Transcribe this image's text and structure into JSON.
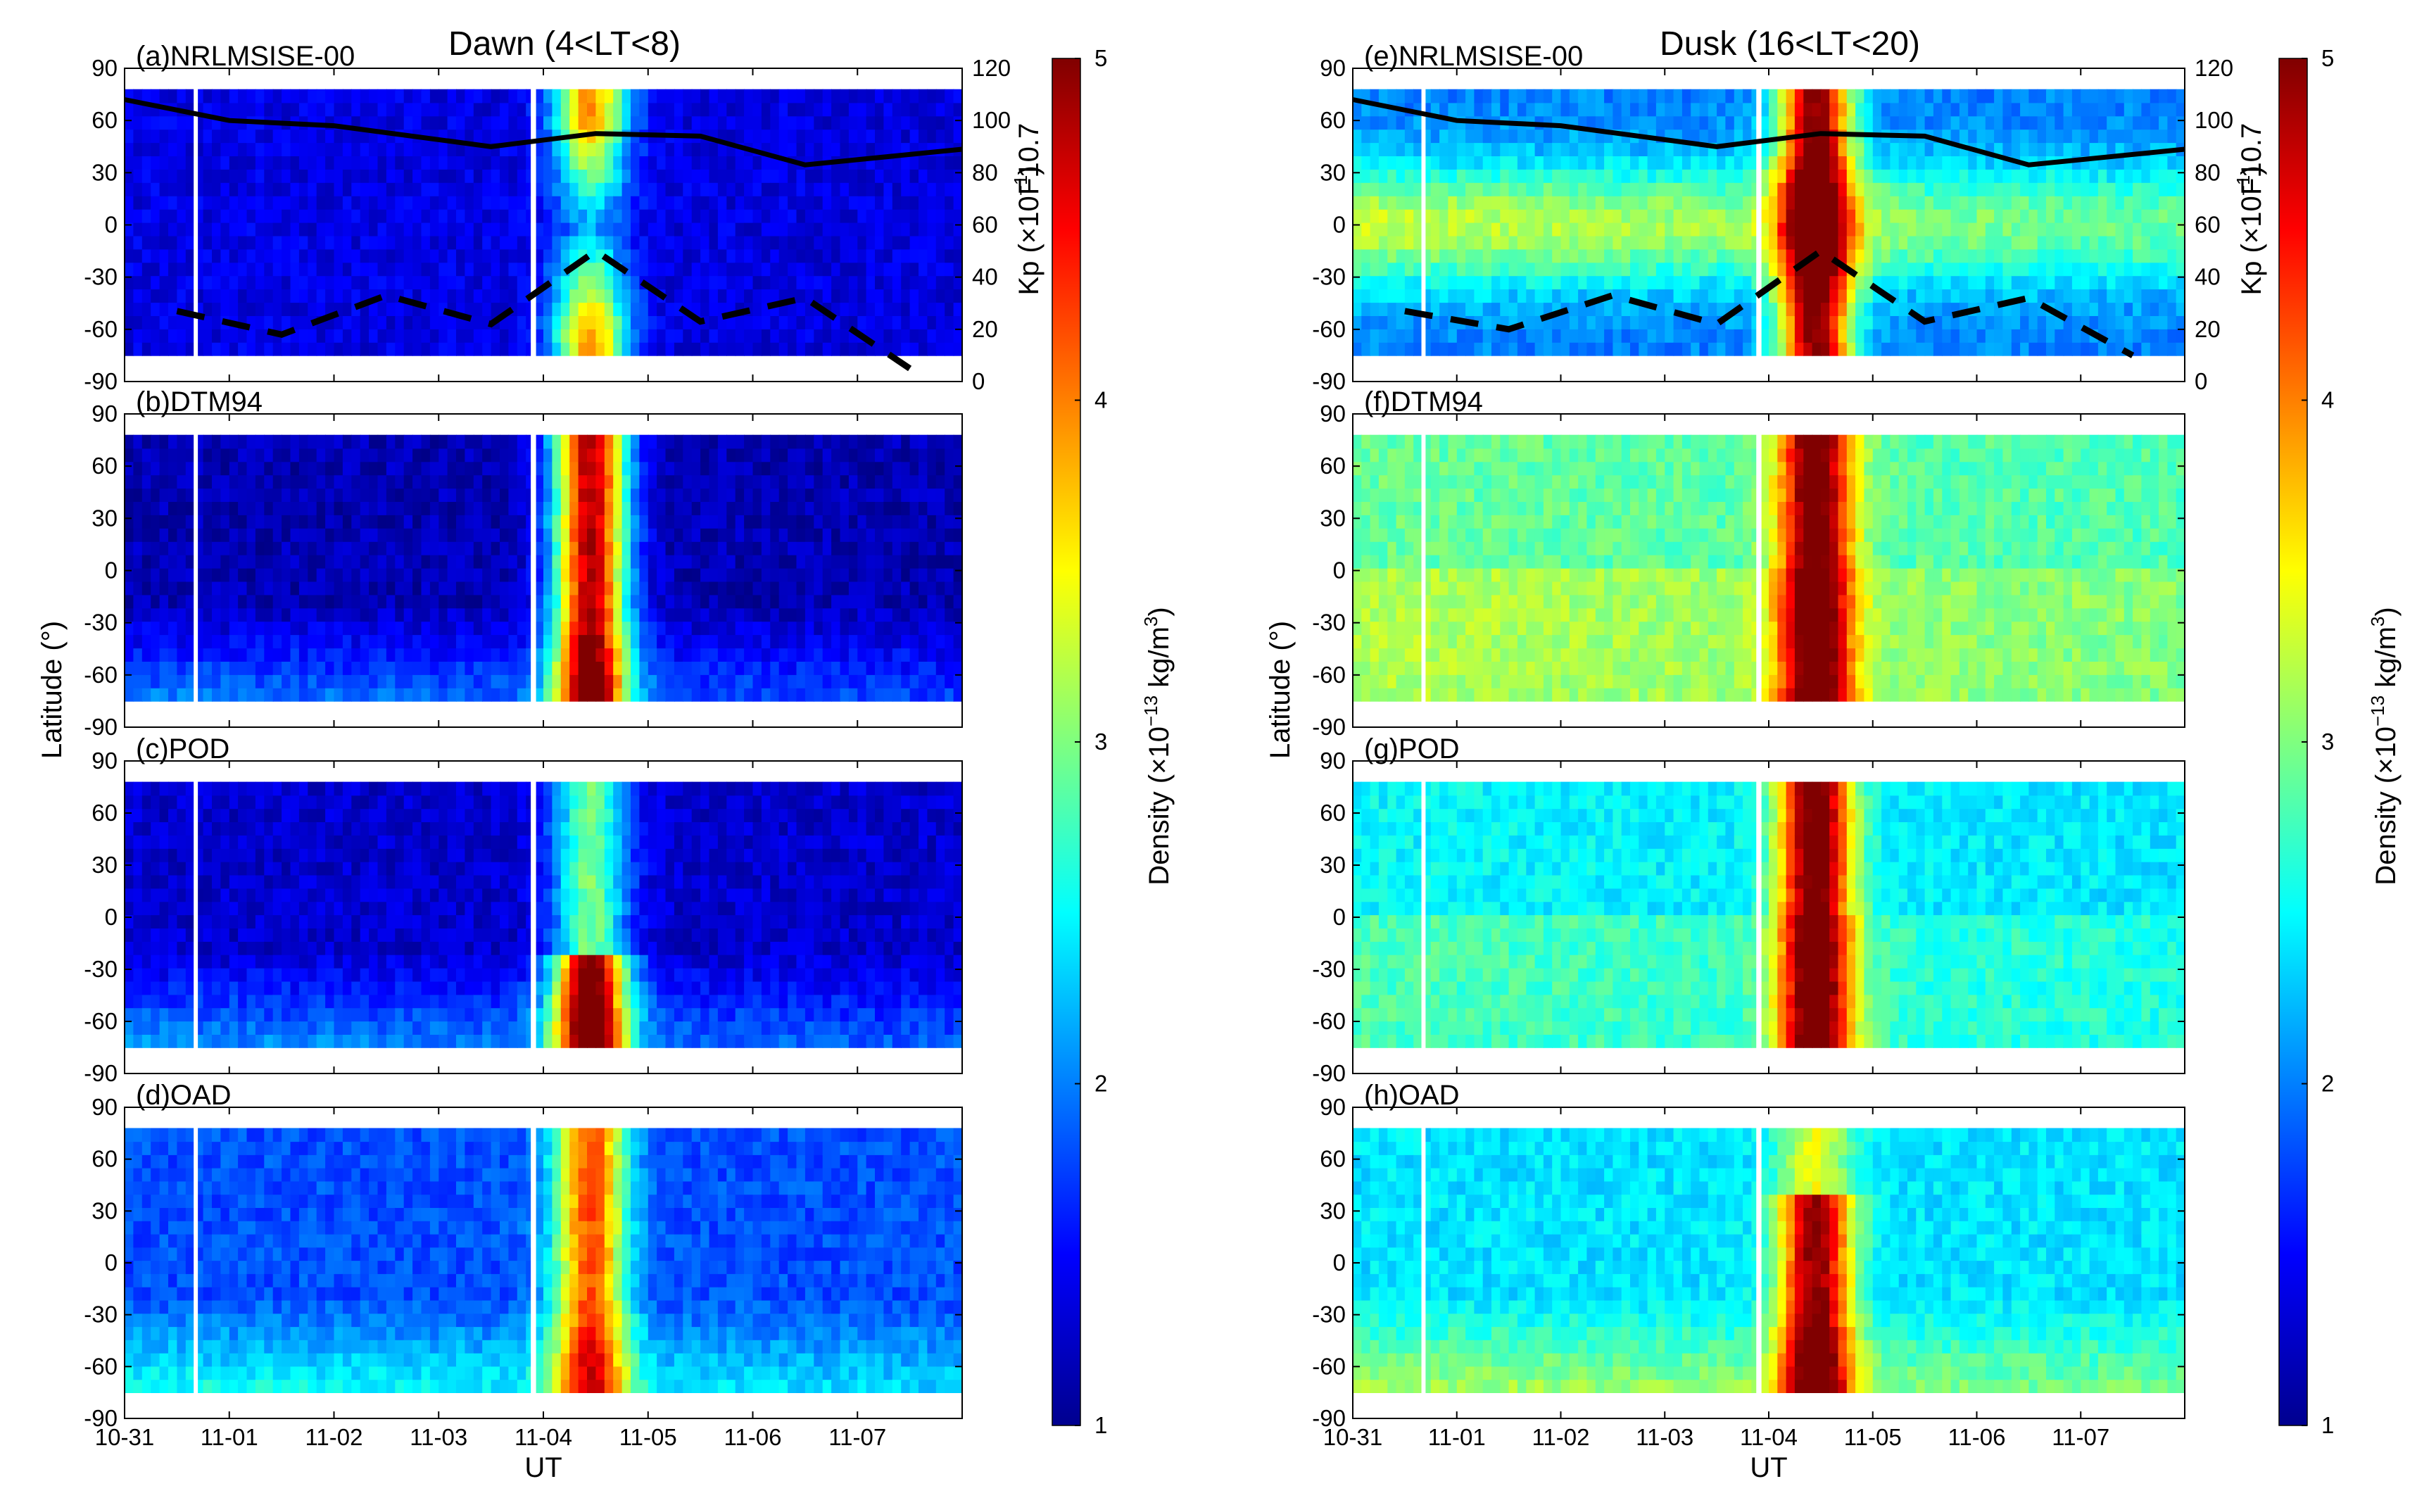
{
  "chart_data": {
    "type": "heatmap",
    "x_axis": {
      "label": "UT",
      "tick_labels": [
        "10-31",
        "11-01",
        "11-02",
        "11-03",
        "11-04",
        "11-05",
        "11-06",
        "11-07"
      ],
      "tick_days": [
        0,
        1,
        2,
        3,
        4,
        5,
        6,
        7
      ],
      "range_days": [
        0,
        8
      ]
    },
    "y_axis": {
      "label": "Latitude (°)",
      "range": [
        -90,
        90
      ],
      "ticks": [
        90,
        60,
        30,
        0,
        -30,
        -60,
        -90
      ],
      "tick_labels": [
        "90",
        "60",
        "30",
        "0",
        "-30",
        "-60",
        "-90"
      ]
    },
    "colorbar": {
      "label_main": "Density (×10",
      "label_exp": "−13",
      "label_unit": " kg/m",
      "label_unit_exp": "3",
      "label_close": ")",
      "range": [
        1,
        5
      ],
      "ticks": [
        "1",
        "2",
        "3",
        "4",
        "5"
      ],
      "colormap": "jet"
    },
    "right_axis": {
      "kp_label": "Kp (×10",
      "kp_exp": "−1",
      "kp_close": ")",
      "f107_label": "F10.7",
      "range": [
        0,
        120
      ],
      "ticks": [
        "0",
        "20",
        "40",
        "60",
        "80",
        "100",
        "120"
      ]
    },
    "columns": [
      {
        "title": "Dawn (4<LT<8)",
        "panels": [
          {
            "label": "(a)NRLMSISE-00",
            "model": "NRLMSISE-00",
            "lat_profile": "flat",
            "base": 1.3,
            "storm_peak": 3.6,
            "storm_lat": "high"
          },
          {
            "label": "(b)DTM94",
            "model": "DTM94",
            "lat_profile": "south-high",
            "base": 1.2,
            "storm_peak": 4.8,
            "storm_lat": "tilted"
          },
          {
            "label": "(c)POD",
            "model": "POD",
            "lat_profile": "south-high",
            "base": 1.3,
            "storm_peak": 5.0,
            "storm_lat": "south"
          },
          {
            "label": "(d)OAD",
            "model": "OAD",
            "lat_profile": "south-high",
            "base": 1.8,
            "storm_peak": 4.2,
            "storm_lat": "tilted"
          }
        ],
        "f107": [
          {
            "day": 0.0,
            "value": 108
          },
          {
            "day": 1.0,
            "value": 100
          },
          {
            "day": 2.0,
            "value": 98
          },
          {
            "day": 3.5,
            "value": 90
          },
          {
            "day": 4.5,
            "value": 95
          },
          {
            "day": 5.5,
            "value": 94
          },
          {
            "day": 6.5,
            "value": 83
          },
          {
            "day": 8.0,
            "value": 89
          }
        ],
        "kp": [
          {
            "day": 0.5,
            "value": 27
          },
          {
            "day": 1.5,
            "value": 18
          },
          {
            "day": 2.5,
            "value": 33
          },
          {
            "day": 3.5,
            "value": 22
          },
          {
            "day": 4.5,
            "value": 50
          },
          {
            "day": 5.5,
            "value": 23
          },
          {
            "day": 6.5,
            "value": 32
          },
          {
            "day": 7.5,
            "value": 5
          }
        ]
      },
      {
        "title": "Dusk (16<LT<20)",
        "panels": [
          {
            "label": "(e)NRLMSISE-00",
            "model": "NRLMSISE-00",
            "lat_profile": "equator-high",
            "base": 2.0,
            "storm_peak": 5.0,
            "storm_lat": "all"
          },
          {
            "label": "(f)DTM94",
            "model": "DTM94",
            "lat_profile": "flat-mid",
            "base": 2.6,
            "storm_peak": 5.0,
            "storm_lat": "all"
          },
          {
            "label": "(g)POD",
            "model": "POD",
            "lat_profile": "flat-mid",
            "base": 2.2,
            "storm_peak": 5.0,
            "storm_lat": "all"
          },
          {
            "label": "(h)OAD",
            "model": "OAD",
            "lat_profile": "south-high",
            "base": 2.4,
            "storm_peak": 5.0,
            "storm_lat": "south-mid"
          }
        ],
        "f107": [
          {
            "day": 0.0,
            "value": 108
          },
          {
            "day": 1.0,
            "value": 100
          },
          {
            "day": 2.0,
            "value": 98
          },
          {
            "day": 3.5,
            "value": 90
          },
          {
            "day": 4.5,
            "value": 95
          },
          {
            "day": 5.5,
            "value": 94
          },
          {
            "day": 6.5,
            "value": 83
          },
          {
            "day": 8.0,
            "value": 89
          }
        ],
        "kp": [
          {
            "day": 0.5,
            "value": 27
          },
          {
            "day": 1.5,
            "value": 20
          },
          {
            "day": 2.5,
            "value": 33
          },
          {
            "day": 3.5,
            "value": 22
          },
          {
            "day": 4.5,
            "value": 50
          },
          {
            "day": 5.5,
            "value": 23
          },
          {
            "day": 6.5,
            "value": 32
          },
          {
            "day": 7.5,
            "value": 10
          }
        ]
      }
    ]
  }
}
